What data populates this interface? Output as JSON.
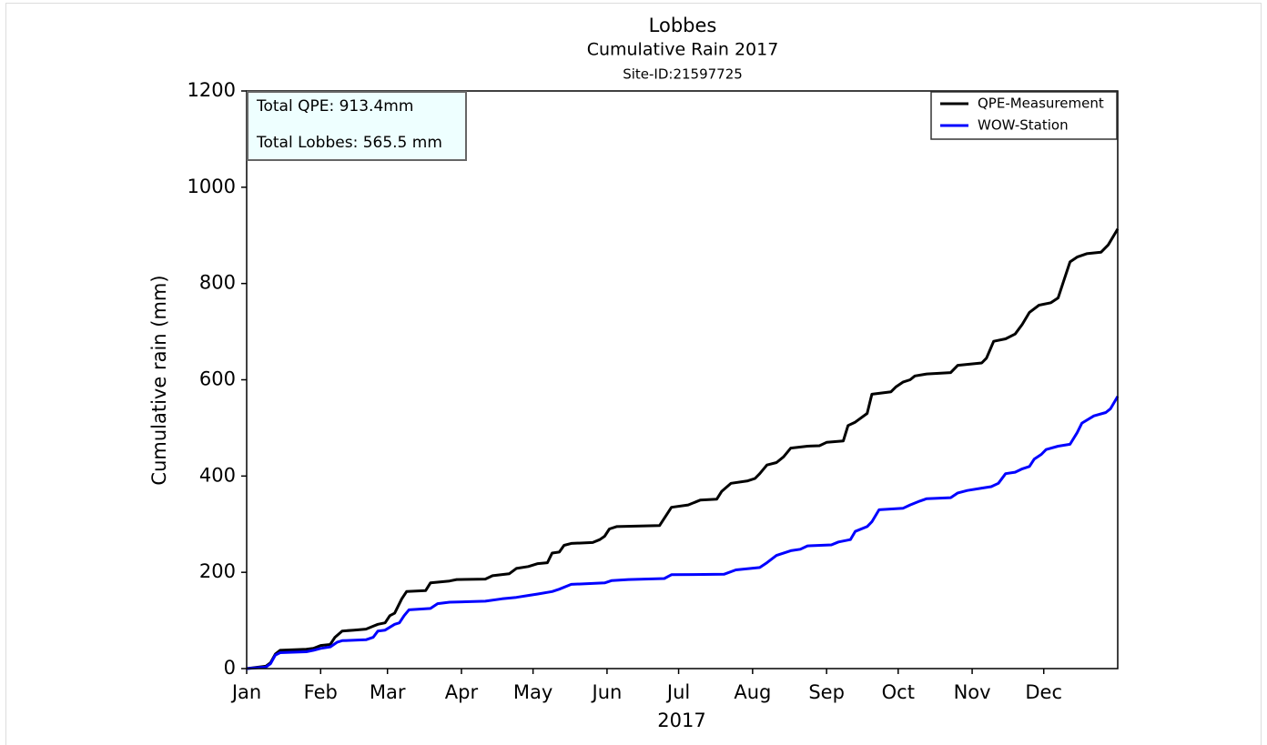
{
  "chart_data": {
    "type": "line",
    "title": "Lobbes",
    "subtitle": "Cumulative Rain 2017",
    "site": "Site-ID:21597725",
    "annotations": [
      "Total QPE: 913.4mm",
      "Total Lobbes: 565.5 mm"
    ],
    "xlabel": "2017",
    "ylabel": "Cumulative rain (mm)",
    "xlim": [
      0,
      365
    ],
    "ylim": [
      0,
      1200
    ],
    "xticks": [
      {
        "value": 0,
        "label": "Jan"
      },
      {
        "value": 31,
        "label": "Feb"
      },
      {
        "value": 59,
        "label": "Mar"
      },
      {
        "value": 90,
        "label": "Apr"
      },
      {
        "value": 120,
        "label": "May"
      },
      {
        "value": 151,
        "label": "Jun"
      },
      {
        "value": 181,
        "label": "Jul"
      },
      {
        "value": 212,
        "label": "Aug"
      },
      {
        "value": 243,
        "label": "Sep"
      },
      {
        "value": 273,
        "label": "Oct"
      },
      {
        "value": 304,
        "label": "Nov"
      },
      {
        "value": 334,
        "label": "Dec"
      }
    ],
    "yticks": [
      0,
      200,
      400,
      600,
      800,
      1000,
      1200
    ],
    "grid": false,
    "legend": "upper right",
    "series": [
      {
        "name": "QPE-Measurement",
        "color": "#000000",
        "x": [
          0,
          5,
          8,
          10,
          12,
          14,
          25,
          28,
          31,
          35,
          37,
          40,
          45,
          50,
          53,
          55,
          58,
          60,
          62,
          65,
          67,
          75,
          77,
          85,
          88,
          100,
          103,
          110,
          113,
          118,
          122,
          126,
          128,
          131,
          133,
          136,
          145,
          148,
          150,
          152,
          155,
          173,
          176,
          178,
          185,
          190,
          197,
          199,
          203,
          210,
          213,
          215,
          218,
          222,
          225,
          228,
          235,
          240,
          243,
          250,
          252,
          255,
          260,
          262,
          270,
          272,
          275,
          278,
          280,
          285,
          295,
          298,
          308,
          310,
          313,
          318,
          322,
          325,
          328,
          332,
          337,
          340,
          342,
          345,
          348,
          352,
          358,
          361,
          365
        ],
        "values": [
          0,
          3,
          5,
          12,
          30,
          38,
          40,
          42,
          48,
          50,
          65,
          78,
          80,
          82,
          88,
          92,
          95,
          110,
          115,
          145,
          160,
          162,
          178,
          182,
          185,
          186,
          193,
          197,
          208,
          212,
          218,
          220,
          240,
          242,
          256,
          260,
          262,
          268,
          275,
          290,
          295,
          297,
          320,
          335,
          340,
          350,
          352,
          368,
          385,
          390,
          395,
          405,
          423,
          428,
          440,
          458,
          462,
          463,
          470,
          473,
          505,
          512,
          530,
          570,
          575,
          585,
          595,
          600,
          608,
          612,
          615,
          630,
          635,
          645,
          680,
          685,
          695,
          715,
          740,
          755,
          760,
          770,
          800,
          845,
          855,
          862,
          865,
          880,
          913.4
        ]
      },
      {
        "name": "WOW-Station",
        "color": "#0000ff",
        "x": [
          0,
          8,
          10,
          12,
          14,
          25,
          28,
          31,
          35,
          38,
          40,
          50,
          53,
          55,
          58,
          62,
          64,
          66,
          68,
          77,
          80,
          85,
          100,
          107,
          113,
          118,
          122,
          128,
          131,
          136,
          150,
          153,
          160,
          175,
          178,
          200,
          205,
          215,
          218,
          222,
          228,
          232,
          235,
          245,
          248,
          253,
          255,
          260,
          262,
          265,
          275,
          278,
          282,
          285,
          295,
          298,
          302,
          308,
          312,
          315,
          318,
          322,
          325,
          328,
          330,
          333,
          335,
          340,
          345,
          348,
          350,
          355,
          360,
          362,
          365
        ],
        "values": [
          0,
          3,
          10,
          28,
          33,
          35,
          38,
          42,
          45,
          55,
          58,
          60,
          65,
          78,
          80,
          92,
          95,
          110,
          122,
          125,
          135,
          138,
          140,
          145,
          148,
          152,
          155,
          160,
          165,
          175,
          178,
          183,
          185,
          187,
          195,
          196,
          205,
          210,
          220,
          235,
          245,
          248,
          255,
          257,
          263,
          268,
          285,
          295,
          305,
          330,
          333,
          340,
          348,
          353,
          355,
          365,
          370,
          375,
          378,
          385,
          405,
          408,
          415,
          420,
          435,
          445,
          455,
          462,
          466,
          490,
          510,
          525,
          532,
          540,
          565.5
        ]
      }
    ]
  }
}
